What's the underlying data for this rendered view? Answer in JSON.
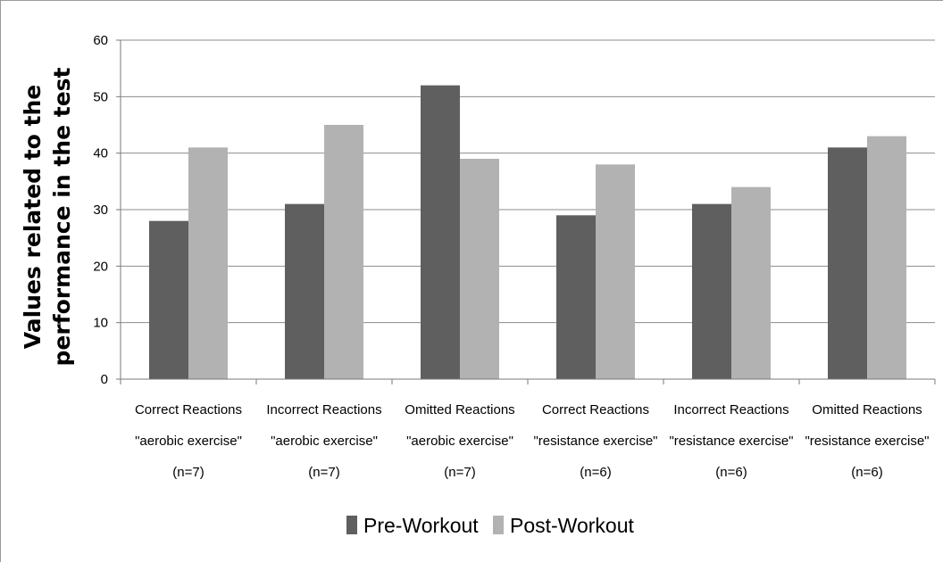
{
  "chart_data": {
    "type": "bar",
    "title": "",
    "xlabel": "",
    "ylabel": [
      "Values related to the",
      "performance in  the test"
    ],
    "ylim": [
      0,
      60
    ],
    "yticks": [
      0,
      10,
      20,
      30,
      40,
      50,
      60
    ],
    "grid": true,
    "legend_position": "bottom",
    "categories": [
      [
        "Correct Reactions",
        "\"aerobic exercise\"",
        "(n=7)"
      ],
      [
        "Incorrect Reactions",
        "\"aerobic exercise\"",
        "(n=7)"
      ],
      [
        "Omitted Reactions",
        "\"aerobic exercise\"",
        "(n=7)"
      ],
      [
        "Correct Reactions",
        "\"resistance exercise\"",
        "(n=6)"
      ],
      [
        "Incorrect Reactions",
        "\"resistance exercise\"",
        "(n=6)"
      ],
      [
        "Omitted Reactions",
        "\"resistance exercise\"",
        "(n=6)"
      ]
    ],
    "series": [
      {
        "name": "Pre-Workout",
        "color": "#5f5f5f",
        "values": [
          28,
          31,
          52,
          29,
          31,
          41
        ]
      },
      {
        "name": "Post-Workout",
        "color": "#b2b2b2",
        "values": [
          41,
          45,
          39,
          38,
          34,
          43
        ]
      }
    ]
  }
}
